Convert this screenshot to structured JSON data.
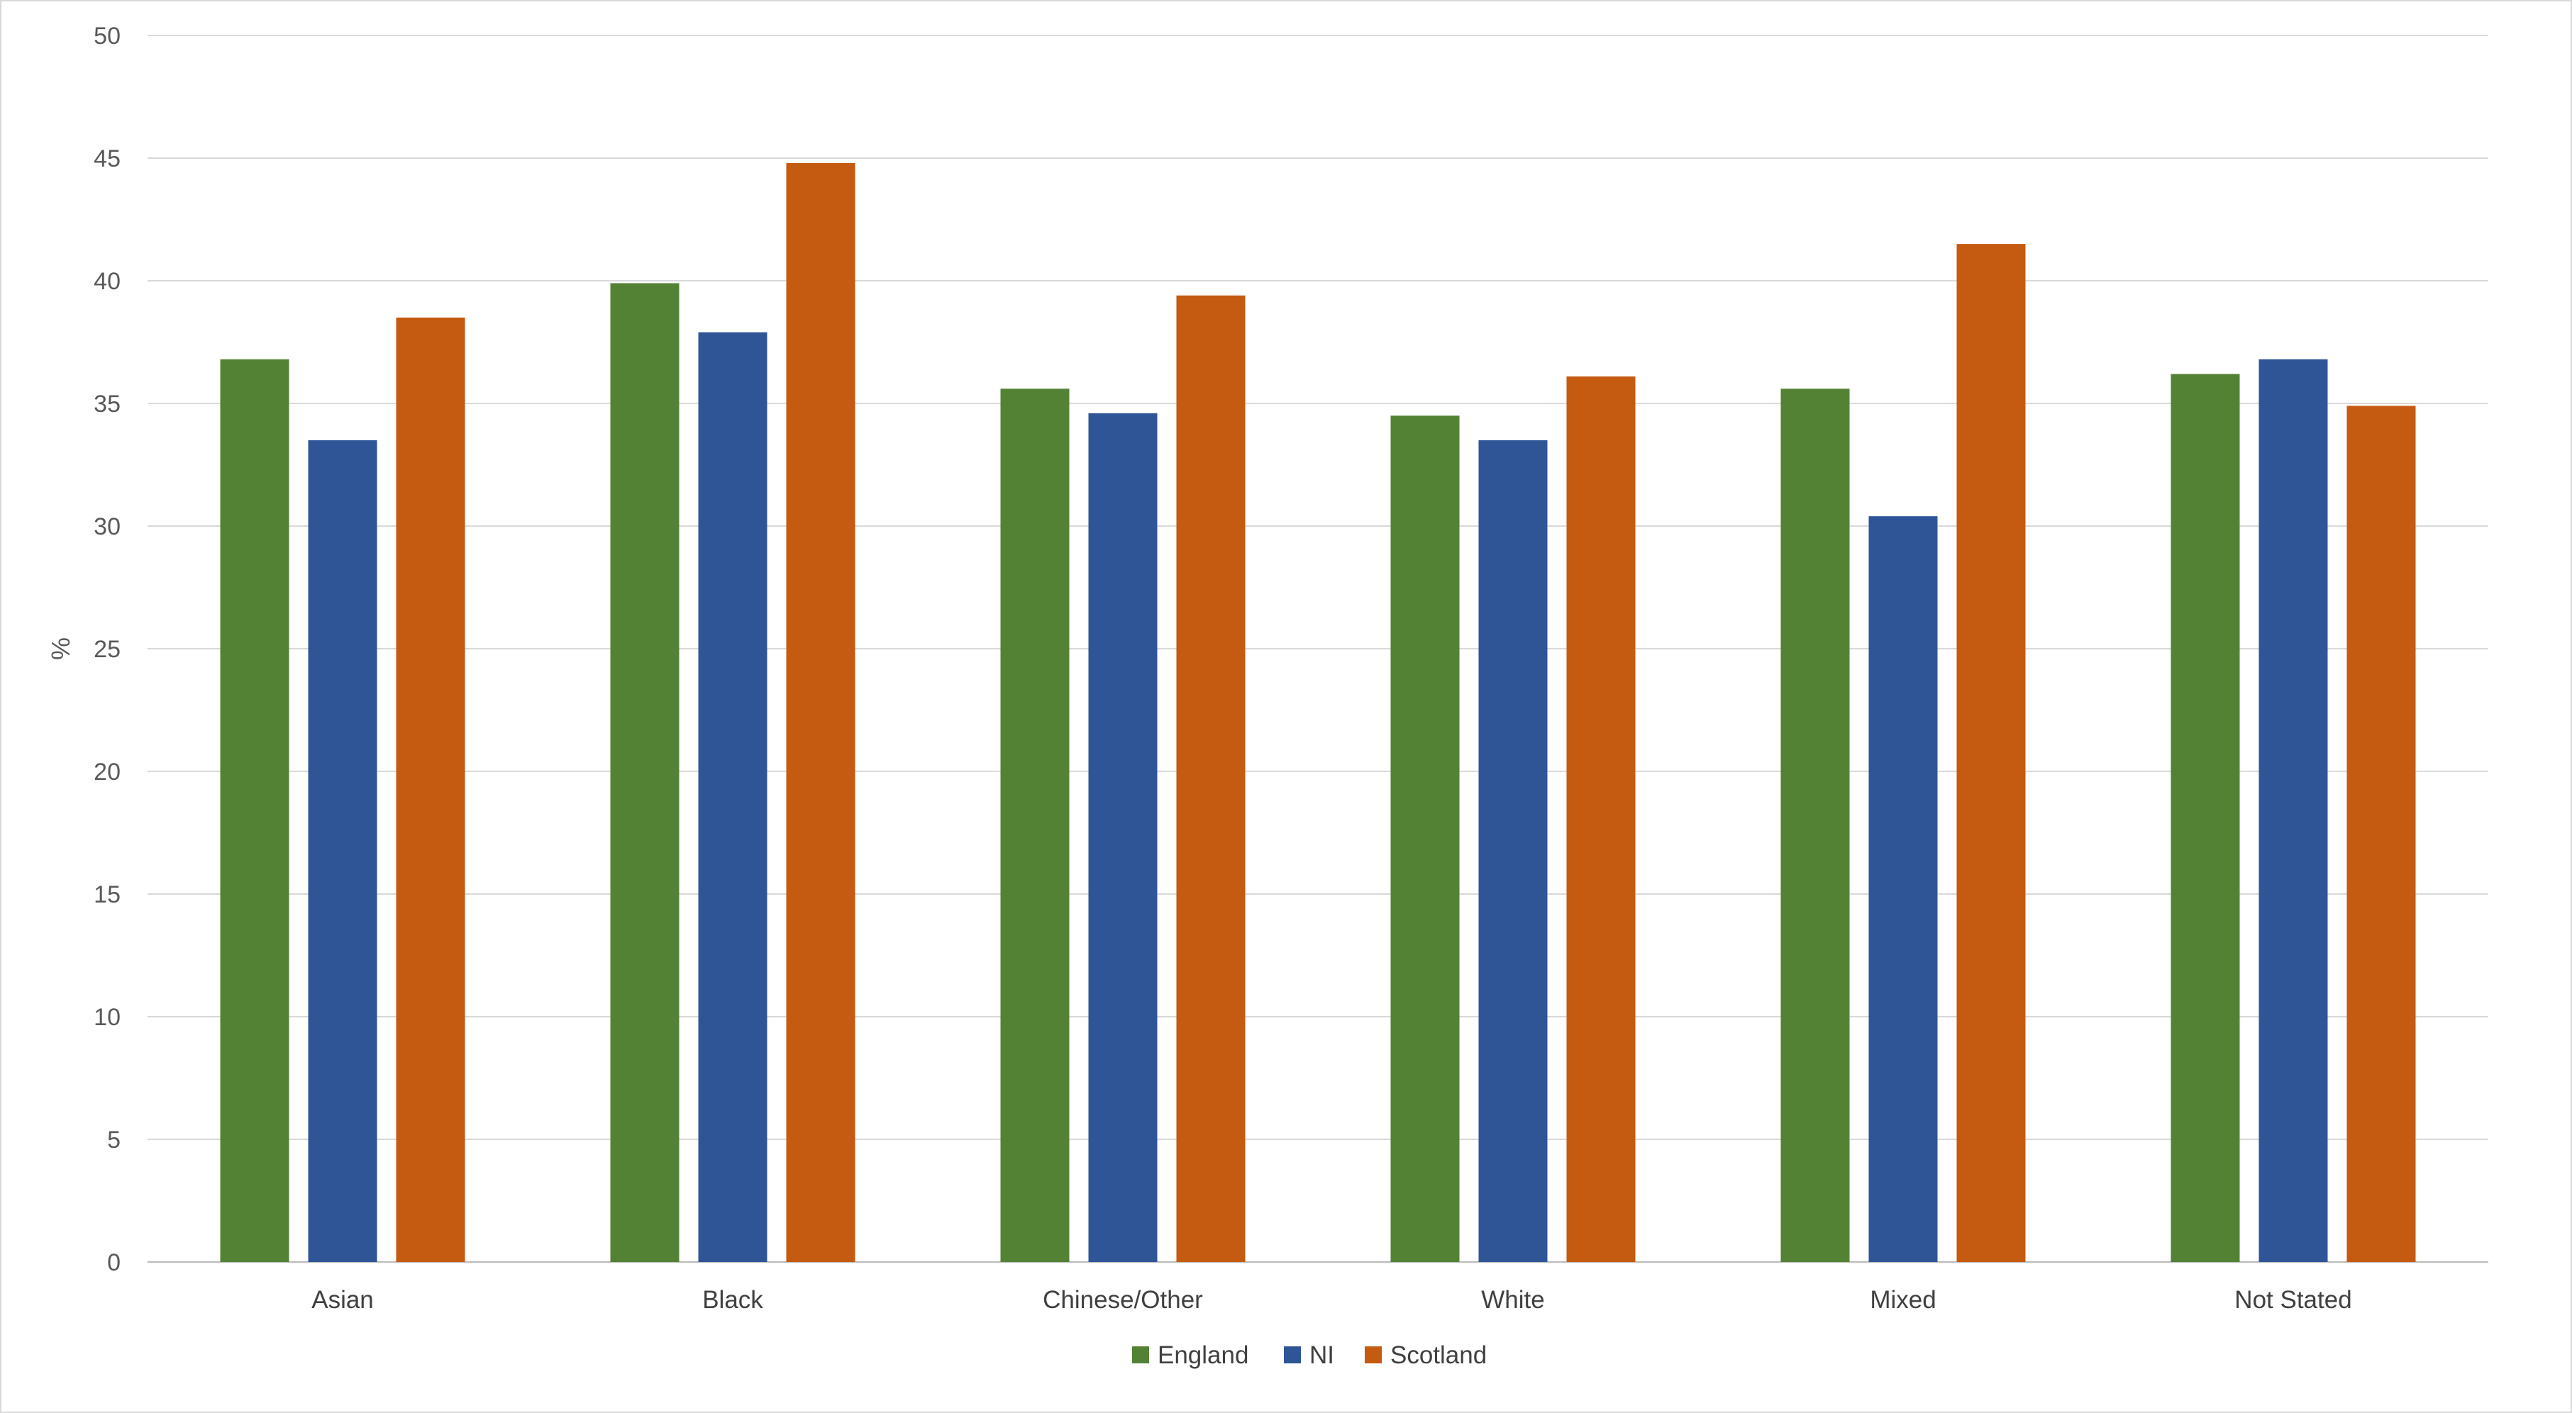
{
  "chart_data": {
    "type": "bar",
    "title": "",
    "xlabel": "",
    "ylabel": "%",
    "ylim": [
      0,
      50
    ],
    "yticks": [
      0,
      5,
      10,
      15,
      20,
      25,
      30,
      35,
      40,
      45,
      50
    ],
    "grid": true,
    "legend_position": "bottom",
    "categories": [
      "Asian",
      "Black",
      "Chinese/Other",
      "White",
      "Mixed",
      "Not Stated"
    ],
    "series": [
      {
        "name": "England",
        "color": "#548235",
        "values": [
          36.8,
          39.9,
          35.6,
          34.5,
          35.6,
          36.2
        ]
      },
      {
        "name": "NI",
        "color": "#2F5597",
        "values": [
          33.5,
          37.9,
          34.6,
          33.5,
          30.4,
          36.8
        ]
      },
      {
        "name": "Scotland",
        "color": "#C55A11",
        "values": [
          38.5,
          44.8,
          39.4,
          36.1,
          41.5,
          34.9
        ]
      }
    ]
  }
}
